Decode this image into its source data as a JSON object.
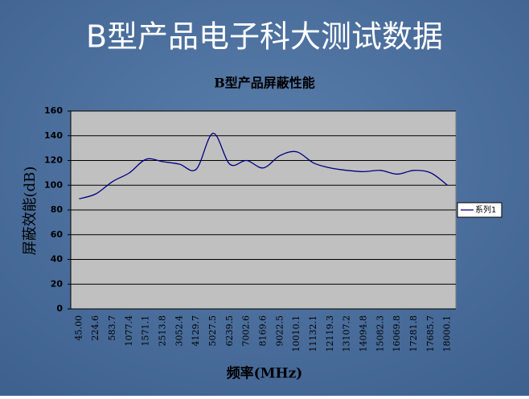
{
  "slide_title": "B型产品电子科大测试数据",
  "chart_data": {
    "type": "line",
    "title": "B型产品屏蔽性能",
    "x_label": "频率(MHz)",
    "y_label": "屏蔽效能(dB)",
    "categories": [
      "45.00",
      "224.6",
      "583.7",
      "1077.4",
      "1571.1",
      "2513.8",
      "3052.4",
      "4129.7",
      "5027.5",
      "6239.5",
      "7002.6",
      "8169.6",
      "9022.5",
      "10010.1",
      "11132.1",
      "12119.3",
      "13107.2",
      "14094.8",
      "15082.3",
      "16069.8",
      "17281.8",
      "17685.7",
      "18000.1"
    ],
    "series": [
      {
        "name": "系列1",
        "color": "#000080",
        "values": [
          89,
          93,
          103,
          110,
          121,
          119,
          117,
          113,
          142,
          117,
          120,
          114,
          124,
          127,
          118,
          114,
          112,
          111,
          112,
          109,
          112,
          110,
          100
        ]
      }
    ],
    "ylim": [
      0,
      160
    ],
    "yticks": [
      0,
      20,
      40,
      60,
      80,
      100,
      120,
      140,
      160
    ],
    "grid": true,
    "legend": "right"
  }
}
